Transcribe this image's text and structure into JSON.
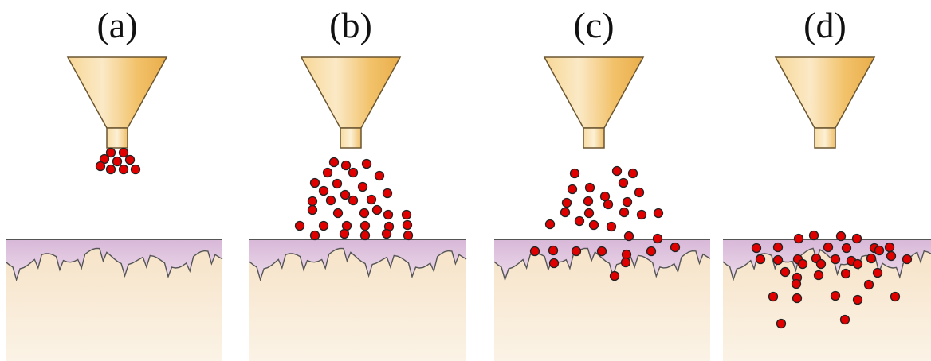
{
  "figure": {
    "panels": [
      {
        "label": "(a)",
        "stage": "particles-leaving-funnel"
      },
      {
        "label": "(b)",
        "stage": "particles-above-skin"
      },
      {
        "label": "(c)",
        "stage": "particles-entering-skin"
      },
      {
        "label": "(d)",
        "stage": "particles-inside-skin"
      }
    ],
    "colors": {
      "particle": "#e00000",
      "particle_outline": "#222222",
      "funnel": "#f2c26a",
      "funnel_highlight": "#fbe6b8",
      "epidermis": "#dcc0dc",
      "dermis": "#f7e8cf",
      "surface_line": "#555555"
    }
  }
}
